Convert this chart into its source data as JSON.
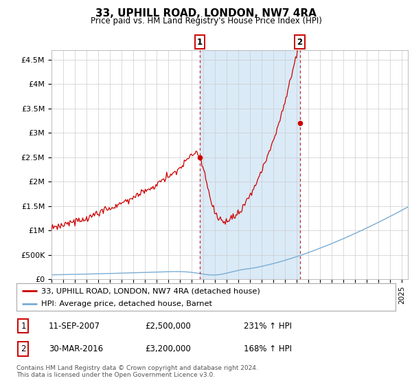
{
  "title": "33, UPHILL ROAD, LONDON, NW7 4RA",
  "subtitle": "Price paid vs. HM Land Registry's House Price Index (HPI)",
  "ylabel_ticks": [
    "£0",
    "£500K",
    "£1M",
    "£1.5M",
    "£2M",
    "£2.5M",
    "£3M",
    "£3.5M",
    "£4M",
    "£4.5M"
  ],
  "ylabel_values": [
    0,
    500000,
    1000000,
    1500000,
    2000000,
    2500000,
    3000000,
    3500000,
    4000000,
    4500000
  ],
  "ylim": [
    0,
    4700000
  ],
  "xlim_start": 1995.0,
  "xlim_end": 2025.5,
  "purchase1_date": 2007.7,
  "purchase1_price": 2500000,
  "purchase1_label": "1",
  "purchase1_text": "11-SEP-2007",
  "purchase1_price_text": "£2,500,000",
  "purchase1_hpi_text": "231% ↑ HPI",
  "purchase2_date": 2016.25,
  "purchase2_price": 3200000,
  "purchase2_label": "2",
  "purchase2_text": "30-MAR-2016",
  "purchase2_price_text": "£3,200,000",
  "purchase2_hpi_text": "168% ↑ HPI",
  "line_color_house": "#cc0000",
  "line_color_hpi": "#7aadd4",
  "highlight_color": "#daeaf7",
  "annotation_box_color": "#cc0000",
  "legend_label_house": "33, UPHILL ROAD, LONDON, NW7 4RA (detached house)",
  "legend_label_hpi": "HPI: Average price, detached house, Barnet",
  "footer_text": "Contains HM Land Registry data © Crown copyright and database right 2024.\nThis data is licensed under the Open Government Licence v3.0.",
  "background_color": "#ffffff",
  "grid_color": "#cccccc"
}
